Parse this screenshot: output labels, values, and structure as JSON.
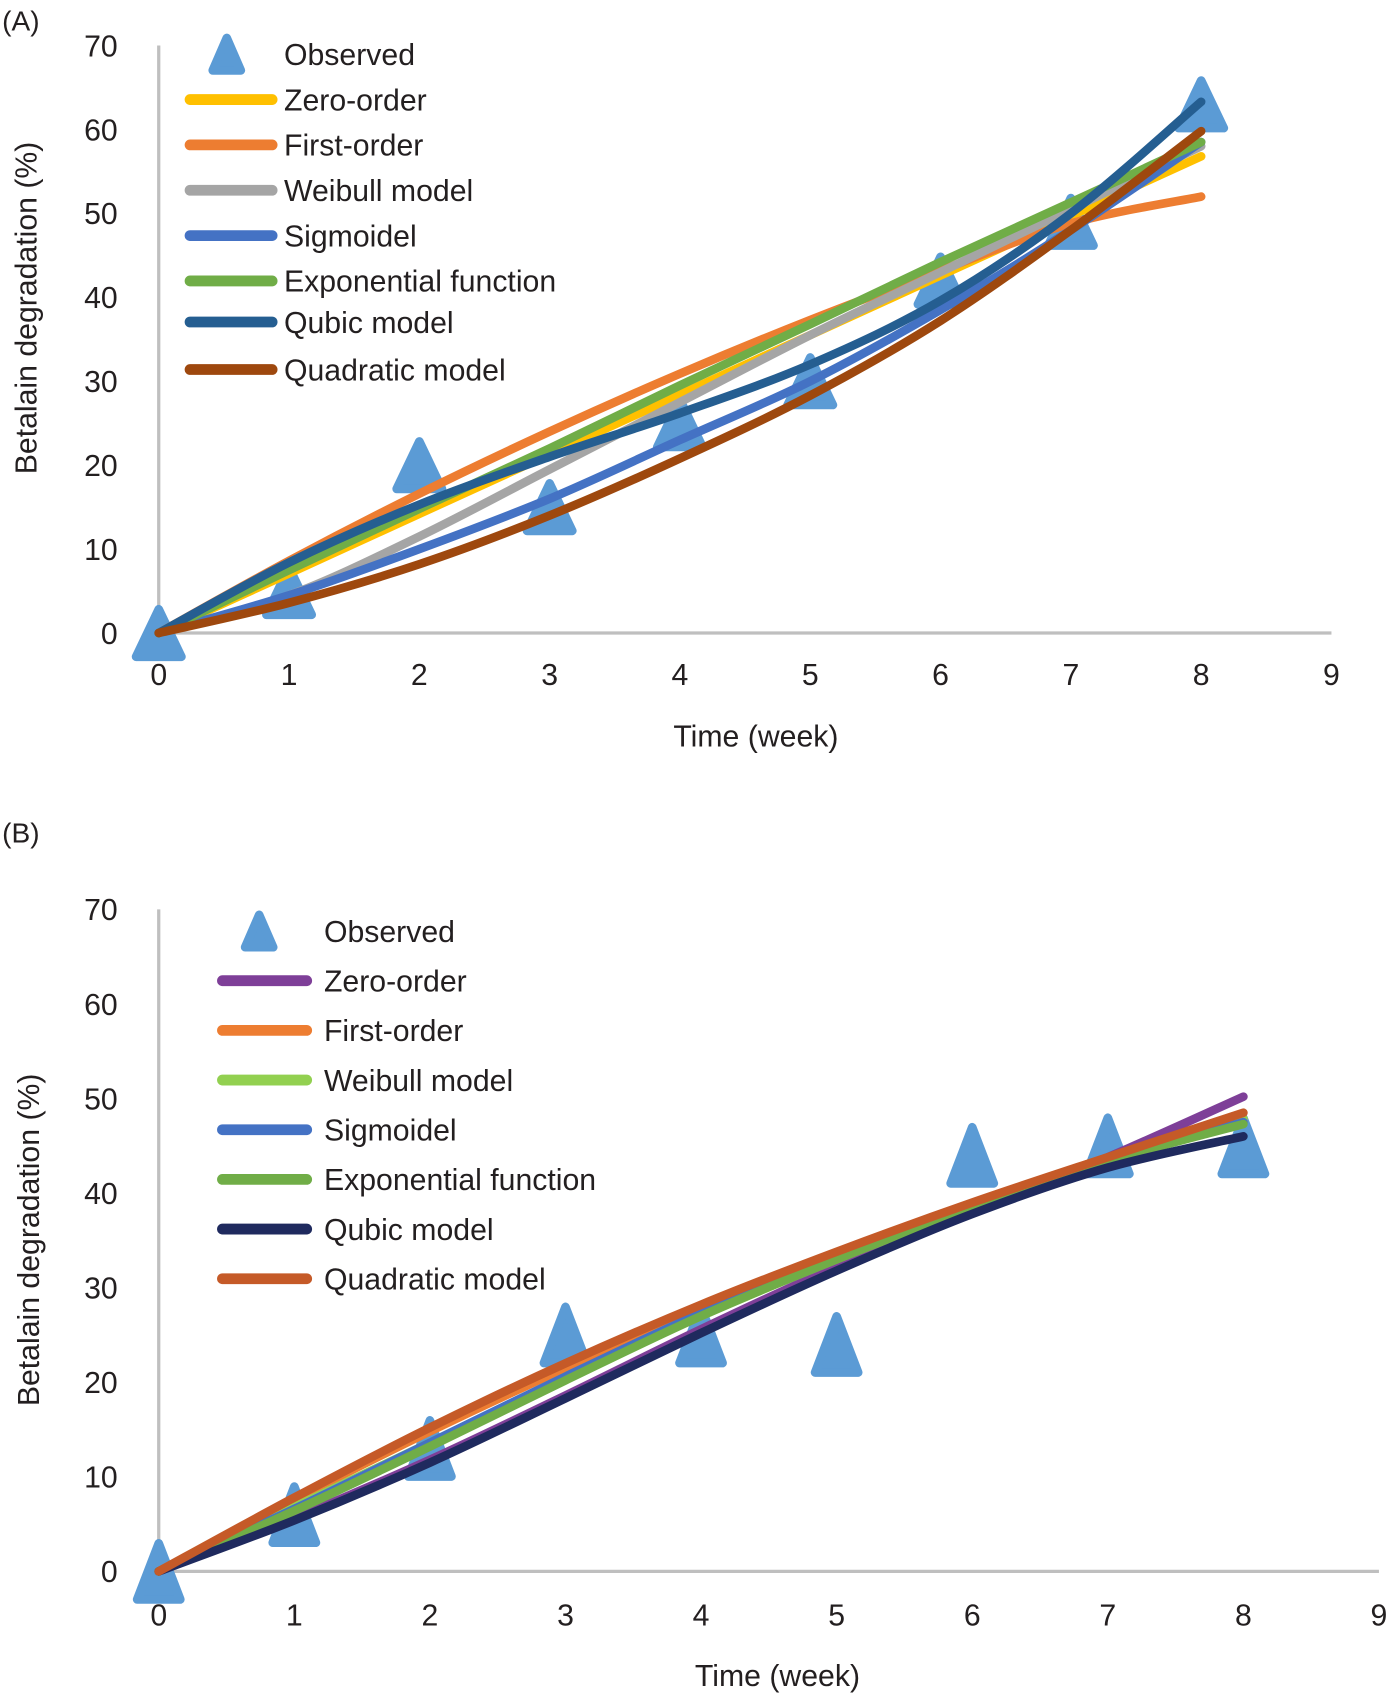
{
  "chart_data": [
    {
      "panel_label": "(A)",
      "type": "line",
      "xlabel": "Time (week)",
      "ylabel": "Betalain degradation (%)",
      "xlim": [
        0,
        9
      ],
      "ylim": [
        0,
        70
      ],
      "x_ticks": [
        "0",
        "1",
        "2",
        "3",
        "4",
        "5",
        "6",
        "7",
        "8",
        "9"
      ],
      "y_ticks": [
        "0",
        "10",
        "20",
        "30",
        "40",
        "50",
        "60",
        "70"
      ],
      "grid": false,
      "legend_position": "top-left",
      "observed": {
        "name": "Observed",
        "color": "#5b9bd5",
        "x": [
          0,
          1,
          2,
          3,
          4,
          5,
          6,
          7,
          8
        ],
        "y": [
          0,
          5,
          20,
          15,
          25,
          30,
          42,
          49,
          63
        ]
      },
      "series": [
        {
          "name": "Zero-order",
          "color": "#ffc000",
          "x": [
            0,
            1,
            2,
            3,
            4,
            5,
            6,
            7,
            8
          ],
          "y": [
            0,
            7.1,
            14.2,
            21.3,
            28.4,
            35.5,
            42.6,
            49.7,
            56.8
          ]
        },
        {
          "name": "First-order",
          "color": "#ed7d31",
          "x": [
            0,
            1,
            2,
            3,
            4,
            5,
            6,
            7,
            8
          ],
          "y": [
            0,
            8.6,
            16.6,
            24.0,
            30.9,
            37.3,
            43.2,
            48.8,
            52
          ]
        },
        {
          "name": "Weibull model",
          "color": "#a5a5a5",
          "x": [
            0,
            1,
            2,
            3,
            4,
            5,
            6,
            7,
            8
          ],
          "y": [
            0,
            4.5,
            11.5,
            19.5,
            27.5,
            35.5,
            43,
            50.5,
            58
          ]
        },
        {
          "name": "Sigmoidel",
          "color": "#4472c4",
          "x": [
            0,
            1,
            2,
            3,
            4,
            5,
            6,
            7,
            8
          ],
          "y": [
            0,
            4.5,
            10,
            16,
            23,
            30,
            38.5,
            48,
            58.5
          ]
        },
        {
          "name": "Exponential function",
          "color": "#70ad47",
          "x": [
            0,
            1,
            2,
            3,
            4,
            5,
            6,
            7,
            8
          ],
          "y": [
            0,
            7.5,
            14.8,
            22,
            29.5,
            36.8,
            44.2,
            51.3,
            58.5
          ]
        },
        {
          "name": "Qubic model",
          "color": "#255e91",
          "x": [
            0,
            1,
            2,
            3,
            4,
            5,
            6,
            7,
            8
          ],
          "y": [
            0,
            8.4,
            15.3,
            21,
            26.2,
            32,
            39.6,
            50,
            63.3
          ]
        },
        {
          "name": "Quadratic model",
          "color": "#9e480e",
          "x": [
            0,
            1,
            2,
            3,
            4,
            5,
            6,
            7,
            8
          ],
          "y": [
            0,
            3.6,
            8.2,
            14,
            20.8,
            28.3,
            37.2,
            48,
            59.8
          ]
        }
      ]
    },
    {
      "panel_label": "(B)",
      "type": "line",
      "xlabel": "Time (week)",
      "ylabel": "Betalain degradation (%)",
      "xlim": [
        0,
        9
      ],
      "ylim": [
        0,
        70
      ],
      "x_ticks": [
        "0",
        "1",
        "2",
        "3",
        "4",
        "5",
        "6",
        "7",
        "8",
        "9"
      ],
      "y_ticks": [
        "0",
        "10",
        "20",
        "30",
        "40",
        "50",
        "60",
        "70"
      ],
      "grid": false,
      "legend_position": "top-left",
      "observed": {
        "name": "Observed",
        "color": "#5b9bd5",
        "x": [
          0,
          1,
          2,
          3,
          4,
          5,
          6,
          7,
          8
        ],
        "y": [
          0,
          6,
          13,
          25,
          25,
          24,
          44,
          45,
          45
        ]
      },
      "series": [
        {
          "name": "Zero-order",
          "color": "#7e3f98",
          "x": [
            0,
            1,
            2,
            3,
            4,
            5,
            6,
            7,
            8
          ],
          "y": [
            0,
            5.6,
            11.8,
            18.6,
            25.6,
            32.2,
            38,
            43.8,
            50.2
          ]
        },
        {
          "name": "First-order",
          "color": "#ed7d31",
          "x": [
            0,
            1,
            2,
            3,
            4,
            5,
            6,
            7,
            8
          ],
          "y": [
            0,
            7.6,
            14.8,
            21.5,
            27.7,
            33.4,
            38.8,
            43.5,
            47.6
          ]
        },
        {
          "name": "Weibull model",
          "color": "#92d050",
          "x": [
            0,
            1,
            2,
            3,
            4,
            5,
            6,
            7,
            8
          ],
          "y": [
            0,
            6.8,
            13.6,
            20.5,
            27,
            33,
            38.5,
            43.5,
            47.9
          ]
        },
        {
          "name": "Sigmoidel",
          "color": "#4472c4",
          "x": [
            0,
            1,
            2,
            3,
            4,
            5,
            6,
            7,
            8
          ],
          "y": [
            0,
            6.6,
            13.6,
            20.6,
            27.3,
            33.3,
            38.6,
            43.4,
            47.5
          ]
        },
        {
          "name": "Exponential function",
          "color": "#70ad47",
          "x": [
            0,
            1,
            2,
            3,
            4,
            5,
            6,
            7,
            8
          ],
          "y": [
            0,
            6.4,
            13.2,
            20.2,
            27,
            33,
            38.5,
            43.4,
            47.3
          ]
        },
        {
          "name": "Qubic model",
          "color": "#1f2a5e",
          "x": [
            0,
            1,
            2,
            3,
            4,
            5,
            6,
            7,
            8
          ],
          "y": [
            0,
            5.4,
            11.5,
            18.3,
            25.2,
            31.8,
            37.8,
            42.7,
            46
          ]
        },
        {
          "name": "Quadratic model",
          "color": "#c55a28",
          "x": [
            0,
            1,
            2,
            3,
            4,
            5,
            6,
            7,
            8
          ],
          "y": [
            0,
            7.8,
            15.2,
            22,
            28.2,
            33.8,
            39,
            43.8,
            48.5
          ]
        }
      ]
    }
  ]
}
